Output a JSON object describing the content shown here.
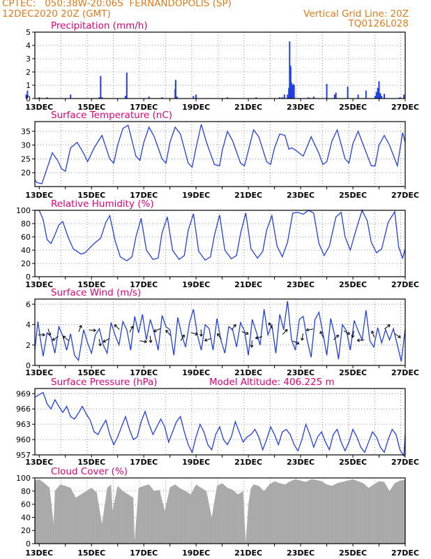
{
  "header": {
    "line1_left": "CPTEC:   050:38W-20:06S  FERNANDOPOLIS (SP)",
    "line2_left": "12DEC2020 20Z (GMT)",
    "line2_right": "Vertical Grid Line: 20Z",
    "line3_right": "TQ0126L028",
    "model_altitude": "Model Altitude: 406.225 m"
  },
  "colors": {
    "header_text": "#e07b1a",
    "panel_title": "#e0007a",
    "series": "#1f3fe6",
    "cloud_fill": "#a6a6a6",
    "axis": "#000000",
    "grid": "#8c8c8c"
  },
  "x_axis": {
    "start": "12DEC2020 20Z",
    "end": "27DEC2020 00Z",
    "tick_labels": [
      "13DEC",
      "15DEC",
      "17DEC",
      "19DEC",
      "21DEC",
      "23DEC",
      "25DEC",
      "27DEC"
    ],
    "tick_days": [
      13,
      15,
      17,
      19,
      21,
      23,
      25,
      27
    ],
    "vertical_grid_hour": "20Z"
  },
  "chart_data": [
    {
      "type": "bar",
      "title": "Precipitation (mm/h)",
      "ylim": [
        0,
        5
      ],
      "yticks": [
        "0",
        "1",
        "2",
        "3",
        "4",
        "5"
      ],
      "x_unit": "day of Dec 2020",
      "x": [
        12.5,
        12.55,
        13.0,
        13.3,
        14.2,
        15.3,
        15.35,
        15.4,
        16.3,
        16.35,
        17.2,
        17.7,
        18.2,
        18.22,
        18.27,
        18.9,
        19.0,
        20.2,
        21.3,
        22.2,
        22.3,
        22.38,
        22.5,
        22.55,
        22.58,
        22.6,
        22.62,
        22.65,
        22.68,
        22.7,
        22.72,
        22.75,
        23.3,
        23.5,
        24.0,
        24.3,
        24.35,
        24.8,
        25.2,
        25.5,
        25.85,
        25.9,
        25.95,
        26.0,
        26.05,
        26.1,
        26.2,
        26.8,
        26.95
      ],
      "values": [
        0.3,
        0.6,
        0.1,
        0.1,
        0.3,
        0.1,
        1.7,
        0.1,
        0.2,
        1.95,
        0.15,
        0.1,
        0.7,
        1.4,
        0.15,
        0.2,
        0.3,
        0.1,
        0.1,
        0.1,
        0.1,
        0.3,
        0.3,
        0.8,
        4.3,
        2.5,
        2.4,
        1.2,
        0.8,
        1.0,
        1.1,
        1.0,
        0.1,
        0.15,
        1.1,
        0.3,
        0.45,
        0.9,
        0.3,
        0.6,
        0.2,
        0.5,
        0.8,
        1.3,
        0.4,
        0.2,
        0.35,
        0.1,
        0.3
      ]
    },
    {
      "type": "line",
      "title": "Surface Temperature (nC)",
      "ylim": [
        15,
        38.5
      ],
      "yticks": [
        "20",
        "25",
        "30",
        "35"
      ],
      "x_unit": "day of Dec 2020",
      "x": [
        12.83,
        12.9,
        13.1,
        13.35,
        13.5,
        13.7,
        13.85,
        14.0,
        14.2,
        14.45,
        14.7,
        14.85,
        15.1,
        15.4,
        15.7,
        15.85,
        16.0,
        16.2,
        16.4,
        16.7,
        16.85,
        17.0,
        17.2,
        17.4,
        17.7,
        17.85,
        18.0,
        18.2,
        18.4,
        18.7,
        18.85,
        19.0,
        19.2,
        19.4,
        19.7,
        19.9,
        20.0,
        20.2,
        20.4,
        20.7,
        20.85,
        21.0,
        21.2,
        21.4,
        21.7,
        21.85,
        22.0,
        22.2,
        22.4,
        22.55,
        22.65,
        22.75,
        22.9,
        23.1,
        23.4,
        23.7,
        23.85,
        24.0,
        24.2,
        24.4,
        24.7,
        24.85,
        25.0,
        25.2,
        25.4,
        25.7,
        25.85,
        26.0,
        26.2,
        26.4,
        26.7,
        26.9,
        27.0
      ],
      "values": [
        17.5,
        16.5,
        16.0,
        23.0,
        27.2,
        24.5,
        21.5,
        20.5,
        29.0,
        31.0,
        27.0,
        24.0,
        29.0,
        33.5,
        25.0,
        23.5,
        30.0,
        36.0,
        37.2,
        26.0,
        24.5,
        31.0,
        36.5,
        33.0,
        25.0,
        23.5,
        31.0,
        36.5,
        34.0,
        23.5,
        22.0,
        29.0,
        37.5,
        31.0,
        23.0,
        22.5,
        28.0,
        35.0,
        31.5,
        23.5,
        22.5,
        28.0,
        35.5,
        33.0,
        24.0,
        23.0,
        29.0,
        34.0,
        33.5,
        28.5,
        29.0,
        28.5,
        27.5,
        26.0,
        33.0,
        27.0,
        23.0,
        24.0,
        31.5,
        35.5,
        25.0,
        23.5,
        30.5,
        35.0,
        30.0,
        22.5,
        22.5,
        30.0,
        33.5,
        30.0,
        22.5,
        34.5,
        31.0
      ]
    },
    {
      "type": "line",
      "title": "Relative Humidity (%)",
      "ylim": [
        0,
        100
      ],
      "yticks": [
        "0",
        "20",
        "40",
        "60",
        "80",
        "100"
      ],
      "x_unit": "day of Dec 2020",
      "x": [
        12.83,
        13.0,
        13.15,
        13.3,
        13.45,
        13.6,
        13.75,
        13.9,
        14.1,
        14.3,
        14.6,
        14.75,
        14.9,
        15.1,
        15.35,
        15.55,
        15.7,
        15.9,
        16.1,
        16.35,
        16.55,
        16.7,
        16.9,
        17.1,
        17.35,
        17.55,
        17.7,
        17.9,
        18.1,
        18.35,
        18.55,
        18.7,
        18.9,
        19.1,
        19.35,
        19.55,
        19.7,
        19.9,
        20.1,
        20.35,
        20.55,
        20.7,
        20.9,
        21.1,
        21.35,
        21.55,
        21.7,
        21.9,
        22.1,
        22.3,
        22.5,
        22.7,
        22.9,
        23.1,
        23.3,
        23.5,
        23.7,
        23.9,
        24.1,
        24.35,
        24.55,
        24.7,
        24.9,
        25.1,
        25.35,
        25.55,
        25.7,
        25.9,
        26.1,
        26.35,
        26.6,
        26.75,
        26.9,
        27.0
      ],
      "values": [
        100,
        100,
        86,
        56,
        50,
        63,
        78,
        83,
        60,
        42,
        34,
        36,
        42,
        50,
        58,
        82,
        92,
        55,
        30,
        24,
        30,
        60,
        88,
        40,
        26,
        28,
        66,
        90,
        40,
        26,
        32,
        70,
        95,
        38,
        25,
        30,
        62,
        93,
        40,
        27,
        32,
        65,
        96,
        42,
        28,
        38,
        70,
        92,
        46,
        30,
        52,
        96,
        97,
        94,
        100,
        96,
        50,
        32,
        46,
        90,
        97,
        60,
        40,
        68,
        100,
        84,
        52,
        36,
        42,
        82,
        98,
        45,
        28,
        42
      ]
    },
    {
      "type": "line",
      "title": "Surface Wind (m/s)",
      "ylim": [
        0,
        6.5
      ],
      "yticks": [
        "0",
        "2",
        "4",
        "6"
      ],
      "x_unit": "day of Dec 2020",
      "x": [
        12.83,
        12.95,
        13.05,
        13.15,
        13.3,
        13.45,
        13.6,
        13.75,
        13.9,
        14.05,
        14.2,
        14.35,
        14.5,
        14.7,
        14.85,
        15.0,
        15.15,
        15.3,
        15.45,
        15.6,
        15.75,
        15.9,
        16.05,
        16.2,
        16.35,
        16.5,
        16.65,
        16.8,
        16.95,
        17.1,
        17.25,
        17.4,
        17.55,
        17.7,
        17.85,
        18.0,
        18.15,
        18.3,
        18.45,
        18.6,
        18.75,
        18.9,
        19.05,
        19.2,
        19.35,
        19.5,
        19.65,
        19.8,
        19.95,
        20.1,
        20.25,
        20.4,
        20.55,
        20.7,
        20.85,
        21.0,
        21.15,
        21.3,
        21.45,
        21.6,
        21.75,
        21.9,
        22.05,
        22.2,
        22.35,
        22.5,
        22.65,
        22.8,
        22.95,
        23.1,
        23.25,
        23.4,
        23.55,
        23.7,
        23.85,
        24.0,
        24.15,
        24.3,
        24.45,
        24.6,
        24.75,
        24.9,
        25.05,
        25.2,
        25.35,
        25.5,
        25.65,
        25.8,
        25.95,
        26.1,
        26.25,
        26.4,
        26.55,
        26.7,
        26.85,
        27.0
      ],
      "values": [
        1.5,
        4.3,
        2.5,
        0.9,
        3.2,
        2.8,
        1.2,
        3.8,
        2.9,
        1.5,
        3.1,
        1.0,
        0.5,
        3.5,
        2.2,
        1.2,
        3.0,
        3.6,
        2.0,
        1.2,
        4.2,
        3.0,
        2.0,
        4.3,
        3.5,
        1.5,
        4.8,
        3.2,
        5.0,
        2.5,
        4.5,
        3.2,
        1.5,
        4.9,
        3.8,
        3.5,
        1.0,
        4.7,
        3.0,
        1.8,
        4.2,
        5.5,
        3.0,
        1.5,
        4.0,
        3.6,
        1.5,
        4.6,
        2.5,
        1.2,
        3.8,
        3.5,
        1.8,
        4.2,
        3.4,
        1.0,
        4.5,
        3.3,
        2.0,
        5.5,
        3.0,
        4.0,
        1.2,
        5.0,
        3.5,
        6.3,
        2.5,
        1.5,
        4.5,
        4.8,
        2.5,
        0.8,
        4.5,
        5.2,
        3.2,
        1.0,
        4.6,
        3.0,
        0.6,
        4.0,
        3.4,
        1.5,
        4.4,
        3.4,
        2.5,
        5.4,
        2.4,
        1.8,
        3.7,
        2.2,
        3.5,
        2.5,
        3.6,
        2.0,
        0.4,
        3.6
      ]
    },
    {
      "type": "line",
      "title": "Surface Pressure (hPa)",
      "ylim": [
        957,
        970
      ],
      "yticks": [
        "957",
        "960",
        "963",
        "966",
        "969"
      ],
      "x_unit": "day of Dec 2020",
      "x": [
        12.83,
        13.0,
        13.15,
        13.3,
        13.45,
        13.6,
        13.75,
        13.9,
        14.05,
        14.2,
        14.35,
        14.5,
        14.65,
        14.8,
        14.95,
        15.1,
        15.25,
        15.4,
        15.55,
        15.7,
        15.85,
        16.0,
        16.15,
        16.3,
        16.45,
        16.6,
        16.75,
        16.9,
        17.05,
        17.2,
        17.35,
        17.5,
        17.65,
        17.8,
        17.95,
        18.1,
        18.25,
        18.4,
        18.55,
        18.7,
        18.85,
        19.0,
        19.15,
        19.3,
        19.45,
        19.6,
        19.75,
        19.9,
        20.05,
        20.2,
        20.35,
        20.5,
        20.65,
        20.8,
        20.95,
        21.1,
        21.25,
        21.4,
        21.55,
        21.7,
        21.85,
        22.0,
        22.15,
        22.3,
        22.45,
        22.6,
        22.75,
        22.9,
        23.05,
        23.2,
        23.35,
        23.5,
        23.65,
        23.8,
        23.95,
        24.1,
        24.25,
        24.4,
        24.55,
        24.7,
        24.85,
        25.0,
        25.15,
        25.3,
        25.45,
        25.6,
        25.75,
        25.9,
        26.05,
        26.2,
        26.35,
        26.5,
        26.65,
        26.8,
        26.95,
        27.0
      ],
      "values": [
        968.3,
        968.8,
        969.2,
        967.0,
        966.0,
        967.8,
        966.5,
        965.3,
        966.5,
        964.5,
        964.0,
        965.2,
        966.5,
        965.0,
        963.8,
        961.5,
        961.0,
        962.5,
        963.8,
        961.0,
        959.0,
        960.5,
        962.5,
        964.5,
        962.0,
        960.0,
        960.5,
        963.5,
        965.5,
        963.0,
        961.0,
        962.5,
        964.0,
        962.5,
        959.5,
        961.5,
        963.5,
        964.5,
        961.5,
        959.0,
        957.5,
        960.5,
        963.0,
        961.5,
        959.0,
        958.0,
        961.0,
        962.5,
        960.0,
        959.0,
        960.5,
        963.5,
        961.5,
        959.5,
        960.5,
        961.0,
        962.0,
        960.5,
        958.0,
        960.0,
        962.5,
        961.0,
        959.0,
        961.5,
        962.0,
        961.0,
        959.0,
        957.8,
        960.0,
        963.0,
        961.0,
        958.5,
        960.5,
        961.5,
        959.5,
        958.0,
        961.0,
        962.0,
        959.5,
        957.8,
        959.5,
        962.0,
        960.5,
        958.5,
        957.5,
        959.5,
        961.5,
        960.5,
        958.5,
        957.5,
        960.0,
        962.0,
        961.0,
        958.0,
        956.8,
        961.0
      ]
    },
    {
      "type": "area",
      "title": "Cloud Cover (%)",
      "ylim": [
        0,
        100
      ],
      "yticks": [
        "0",
        "20",
        "40",
        "60",
        "80",
        "100"
      ],
      "x_unit": "day of Dec 2020",
      "x": [
        12.83,
        13.0,
        13.2,
        13.4,
        13.55,
        13.6,
        13.8,
        14.0,
        14.2,
        14.4,
        14.6,
        14.8,
        15.0,
        15.2,
        15.4,
        15.6,
        15.75,
        15.8,
        16.0,
        16.2,
        16.4,
        16.6,
        16.65,
        16.8,
        17.0,
        17.2,
        17.4,
        17.6,
        17.8,
        18.0,
        18.2,
        18.4,
        18.6,
        18.8,
        19.0,
        19.2,
        19.4,
        19.6,
        19.8,
        20.0,
        20.2,
        20.4,
        20.6,
        20.8,
        20.9,
        21.0,
        21.1,
        21.2,
        21.4,
        21.6,
        21.8,
        22.0,
        22.2,
        22.4,
        22.6,
        22.8,
        23.0,
        23.2,
        23.4,
        23.6,
        23.8,
        24.0,
        24.2,
        24.4,
        24.6,
        24.8,
        25.0,
        25.2,
        25.4,
        25.6,
        25.8,
        26.0,
        26.2,
        26.4,
        26.6,
        26.8,
        27.0
      ],
      "values": [
        96,
        98,
        92,
        85,
        30,
        80,
        90,
        88,
        85,
        70,
        75,
        80,
        85,
        78,
        30,
        85,
        90,
        50,
        88,
        80,
        75,
        70,
        5,
        85,
        88,
        90,
        80,
        82,
        50,
        86,
        90,
        84,
        80,
        75,
        90,
        85,
        80,
        40,
        88,
        92,
        85,
        82,
        75,
        80,
        2,
        60,
        85,
        90,
        88,
        80,
        90,
        95,
        92,
        90,
        95,
        98,
        96,
        94,
        98,
        97,
        95,
        90,
        88,
        92,
        94,
        96,
        98,
        95,
        92,
        85,
        90,
        95,
        94,
        80,
        92,
        96,
        97
      ]
    }
  ]
}
